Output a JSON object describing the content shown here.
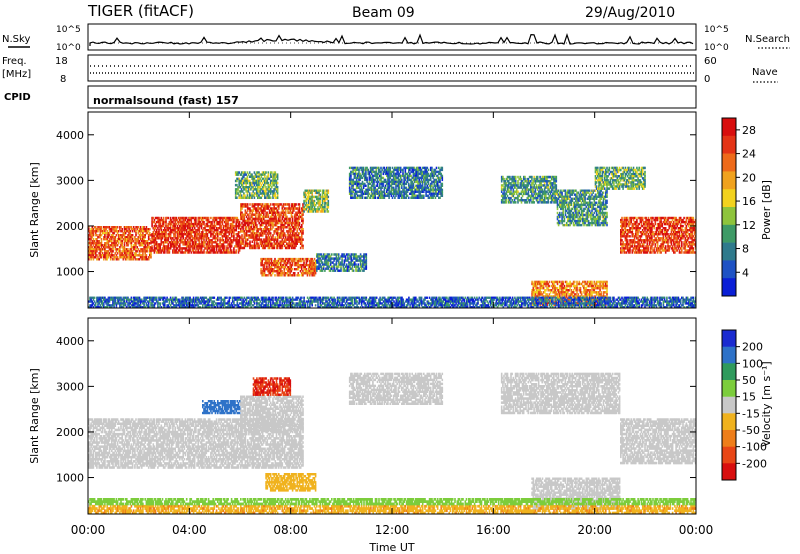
{
  "header": {
    "station": "TIGER (fitACF)",
    "beam": "Beam 09",
    "date": "29/Aug/2010"
  },
  "top_panels": {
    "nsky_label": "N.Sky",
    "nsearch_label": "N.Search",
    "sky_ticks": [
      "10^5",
      "10^0"
    ],
    "freq_label": "Freq.",
    "freq_unit": "[MHz]",
    "freq_ticks": [
      "18",
      "8"
    ],
    "nave_label": "Nave",
    "nave_ticks": [
      "60",
      "0"
    ],
    "cpid_label": "CPID",
    "cpid_value": "normalsound (fast) 157"
  },
  "chart_data": [
    {
      "type": "heatmap",
      "name": "power",
      "ylabel": "Slant Range [km]",
      "y_ticks": [
        "1000",
        "2000",
        "3000",
        "4000"
      ],
      "ylim": [
        200,
        4500
      ],
      "colorbar": {
        "label": "Power [dB]",
        "ticks": [
          "4",
          "8",
          "12",
          "16",
          "20",
          "24",
          "28"
        ],
        "colors": [
          "#0a1fd6",
          "#1e52c4",
          "#2f7a8c",
          "#3e9a66",
          "#8ec43c",
          "#f2d21e",
          "#f0a21e",
          "#ee6a1a",
          "#e43416",
          "#d80e0e"
        ]
      },
      "echo_regions": [
        {
          "t0": 0.0,
          "t1": 2.5,
          "r0": 1250,
          "r1": 2000,
          "v": 24
        },
        {
          "t0": 2.5,
          "t1": 6.0,
          "r0": 1400,
          "r1": 2200,
          "v": 27
        },
        {
          "t0": 6.0,
          "t1": 8.5,
          "r0": 1500,
          "r1": 2500,
          "v": 26
        },
        {
          "t0": 8.5,
          "t1": 9.5,
          "r0": 2300,
          "r1": 2800,
          "v": 14
        },
        {
          "t0": 5.8,
          "t1": 7.5,
          "r0": 2600,
          "r1": 3200,
          "v": 12
        },
        {
          "t0": 6.8,
          "t1": 9.0,
          "r0": 900,
          "r1": 1300,
          "v": 24
        },
        {
          "t0": 9.0,
          "t1": 11.0,
          "r0": 1000,
          "r1": 1400,
          "v": 8
        },
        {
          "t0": 10.3,
          "t1": 14.0,
          "r0": 2600,
          "r1": 3300,
          "v": 8
        },
        {
          "t0": 16.3,
          "t1": 18.5,
          "r0": 2500,
          "r1": 3100,
          "v": 10
        },
        {
          "t0": 18.5,
          "t1": 20.5,
          "r0": 2000,
          "r1": 2800,
          "v": 10
        },
        {
          "t0": 17.5,
          "t1": 20.5,
          "r0": 250,
          "r1": 800,
          "v": 22
        },
        {
          "t0": 21.0,
          "t1": 24.0,
          "r0": 1400,
          "r1": 2200,
          "v": 26
        },
        {
          "t0": 20.0,
          "t1": 22.0,
          "r0": 2800,
          "r1": 3300,
          "v": 12
        },
        {
          "t0": 0.0,
          "t1": 24.0,
          "r0": 200,
          "r1": 450,
          "v": 6
        }
      ]
    },
    {
      "type": "heatmap",
      "name": "velocity",
      "xlabel": "Time UT",
      "x_ticks": [
        "00:00",
        "04:00",
        "08:00",
        "12:00",
        "16:00",
        "20:00",
        "00:00"
      ],
      "xlim": [
        0,
        24
      ],
      "ylabel": "Slant Range [km]",
      "y_ticks": [
        "1000",
        "2000",
        "3000",
        "4000"
      ],
      "ylim": [
        200,
        4500
      ],
      "colorbar": {
        "label": "Velocity [m s⁻¹]",
        "ticks": [
          "200",
          "100",
          "50",
          "15",
          "-15",
          "-50",
          "-100",
          "-200"
        ],
        "colors": [
          "#1a2bd0",
          "#2e72c8",
          "#2f9a5c",
          "#7ccd3c",
          "#c8c8c8",
          "#f0b21e",
          "#ee7e1a",
          "#e84616",
          "#d80e0e"
        ]
      },
      "echo_regions": [
        {
          "t0": 0.0,
          "t1": 8.5,
          "r0": 1200,
          "r1": 2300,
          "v": 0
        },
        {
          "t0": 6.0,
          "t1": 8.5,
          "r0": 2000,
          "r1": 2800,
          "v": 0
        },
        {
          "t0": 4.5,
          "t1": 6.0,
          "r0": 2400,
          "r1": 2700,
          "v": 150
        },
        {
          "t0": 6.5,
          "t1": 8.0,
          "r0": 2800,
          "r1": 3200,
          "v": -200
        },
        {
          "t0": 7.0,
          "t1": 9.0,
          "r0": 700,
          "r1": 1100,
          "v": -30
        },
        {
          "t0": 10.3,
          "t1": 14.0,
          "r0": 2600,
          "r1": 3300,
          "v": 0
        },
        {
          "t0": 16.3,
          "t1": 21.0,
          "r0": 2400,
          "r1": 3300,
          "v": 0
        },
        {
          "t0": 17.5,
          "t1": 21.0,
          "r0": 300,
          "r1": 1000,
          "v": 0
        },
        {
          "t0": 21.0,
          "t1": 24.0,
          "r0": 1300,
          "r1": 2300,
          "v": 0
        },
        {
          "t0": 0.0,
          "t1": 24.0,
          "r0": 200,
          "r1": 400,
          "v": -40
        },
        {
          "t0": 0.0,
          "t1": 24.0,
          "r0": 400,
          "r1": 550,
          "v": 30
        }
      ]
    }
  ]
}
